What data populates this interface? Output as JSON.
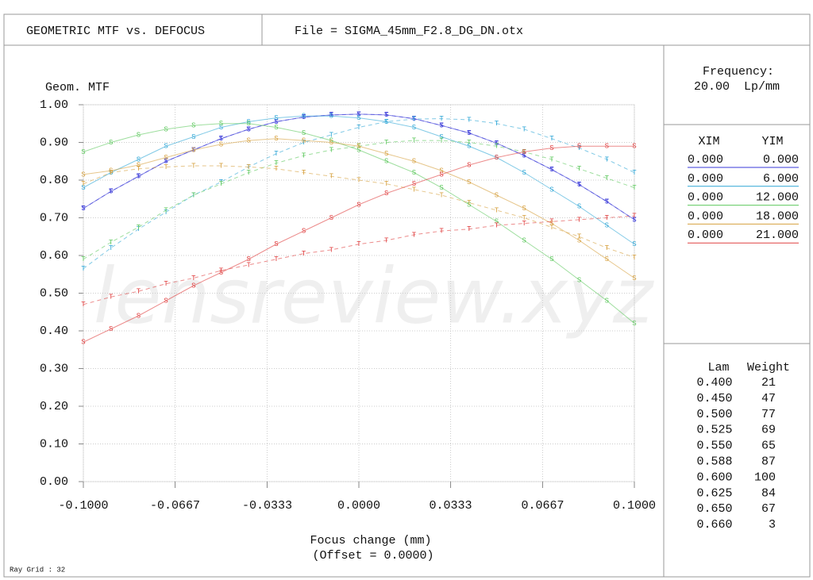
{
  "header": {
    "title": "GEOMETRIC MTF vs. DEFOCUS",
    "file": "File = SIGMA_45mm_F2.8_DG_DN.otx"
  },
  "chart_data": {
    "type": "line",
    "y_label": "Geom. MTF",
    "x_label": "Focus change (mm)",
    "x_sublabel": "(Offset = 0.0000)",
    "watermark": "lensreview.xyz",
    "x": [
      -0.1,
      -0.09,
      -0.08,
      -0.07,
      -0.06,
      -0.05,
      -0.04,
      -0.03,
      -0.02,
      -0.01,
      0,
      0.01,
      0.02,
      0.03,
      0.04,
      0.05,
      0.06,
      0.07,
      0.08,
      0.09,
      0.1
    ],
    "xlim": [
      -0.1,
      0.1
    ],
    "ylim": [
      0,
      1
    ],
    "grid": true,
    "xticks": [
      {
        "value": -0.1,
        "label": "-0.1000"
      },
      {
        "value": -0.0667,
        "label": "-0.0667"
      },
      {
        "value": -0.0333,
        "label": "-0.0333"
      },
      {
        "value": 0,
        "label": "0.0000"
      },
      {
        "value": 0.0333,
        "label": "0.0333"
      },
      {
        "value": 0.0667,
        "label": "0.0667"
      },
      {
        "value": 0.1,
        "label": "0.1000"
      }
    ],
    "yticks": [
      {
        "value": 0,
        "label": "0.00"
      },
      {
        "value": 0.1,
        "label": "0.10"
      },
      {
        "value": 0.2,
        "label": "0.20"
      },
      {
        "value": 0.3,
        "label": "0.30"
      },
      {
        "value": 0.4,
        "label": "0.40"
      },
      {
        "value": 0.5,
        "label": "0.50"
      },
      {
        "value": 0.6,
        "label": "0.60"
      },
      {
        "value": 0.7,
        "label": "0.70"
      },
      {
        "value": 0.8,
        "label": "0.80"
      },
      {
        "value": 0.9,
        "label": "0.90"
      },
      {
        "value": 1,
        "label": "1.00"
      }
    ],
    "series": [
      {
        "marker": "S",
        "color": "#3a3ad8",
        "values": [
          0.725,
          0.77,
          0.81,
          0.85,
          0.88,
          0.91,
          0.935,
          0.955,
          0.967,
          0.973,
          0.975,
          0.973,
          0.963,
          0.945,
          0.925,
          0.898,
          0.865,
          0.828,
          0.788,
          0.743,
          0.695
        ]
      },
      {
        "marker": "T",
        "color": "#3a3ad8",
        "values": [
          0.725,
          0.77,
          0.81,
          0.85,
          0.88,
          0.91,
          0.935,
          0.955,
          0.967,
          0.973,
          0.975,
          0.973,
          0.963,
          0.945,
          0.925,
          0.898,
          0.865,
          0.828,
          0.788,
          0.743,
          0.695
        ]
      },
      {
        "marker": "S",
        "color": "#2fa6d6",
        "values": [
          0.78,
          0.82,
          0.855,
          0.89,
          0.915,
          0.94,
          0.955,
          0.965,
          0.97,
          0.97,
          0.965,
          0.955,
          0.94,
          0.915,
          0.89,
          0.86,
          0.82,
          0.775,
          0.73,
          0.68,
          0.63
        ]
      },
      {
        "marker": "T",
        "color": "#2fa6d6",
        "values": [
          0.565,
          0.62,
          0.67,
          0.715,
          0.76,
          0.795,
          0.835,
          0.87,
          0.9,
          0.92,
          0.94,
          0.955,
          0.962,
          0.963,
          0.96,
          0.95,
          0.935,
          0.91,
          0.885,
          0.855,
          0.82
        ]
      },
      {
        "marker": "S",
        "color": "#5ec85e",
        "values": [
          0.875,
          0.9,
          0.92,
          0.935,
          0.945,
          0.95,
          0.95,
          0.94,
          0.925,
          0.905,
          0.88,
          0.85,
          0.82,
          0.78,
          0.735,
          0.69,
          0.64,
          0.59,
          0.535,
          0.48,
          0.42
        ]
      },
      {
        "marker": "T",
        "color": "#5ec85e",
        "values": [
          0.59,
          0.635,
          0.675,
          0.72,
          0.76,
          0.79,
          0.82,
          0.845,
          0.865,
          0.88,
          0.89,
          0.9,
          0.905,
          0.905,
          0.9,
          0.89,
          0.875,
          0.855,
          0.83,
          0.805,
          0.78
        ]
      },
      {
        "marker": "S",
        "color": "#d6a03e",
        "values": [
          0.815,
          0.825,
          0.84,
          0.86,
          0.88,
          0.895,
          0.905,
          0.91,
          0.905,
          0.9,
          0.89,
          0.87,
          0.85,
          0.825,
          0.795,
          0.76,
          0.725,
          0.685,
          0.64,
          0.59,
          0.54
        ]
      },
      {
        "marker": "T",
        "color": "#d6a03e",
        "values": [
          0.79,
          0.82,
          0.83,
          0.835,
          0.838,
          0.838,
          0.835,
          0.83,
          0.82,
          0.81,
          0.8,
          0.79,
          0.775,
          0.76,
          0.74,
          0.72,
          0.7,
          0.675,
          0.65,
          0.62,
          0.595
        ]
      },
      {
        "marker": "S",
        "color": "#e04040",
        "values": [
          0.37,
          0.405,
          0.44,
          0.48,
          0.52,
          0.555,
          0.59,
          0.63,
          0.665,
          0.7,
          0.735,
          0.765,
          0.79,
          0.815,
          0.84,
          0.86,
          0.875,
          0.885,
          0.89,
          0.89,
          0.89
        ]
      },
      {
        "marker": "T",
        "color": "#e04040",
        "values": [
          0.47,
          0.49,
          0.505,
          0.525,
          0.54,
          0.56,
          0.575,
          0.59,
          0.605,
          0.615,
          0.63,
          0.64,
          0.655,
          0.665,
          0.67,
          0.68,
          0.685,
          0.69,
          0.695,
          0.7,
          0.705
        ]
      }
    ]
  },
  "frequency": {
    "label": "Frequency:",
    "value": "20.00  Lp/mm"
  },
  "fields": {
    "headers": [
      "XIM",
      "YIM"
    ],
    "rows": [
      {
        "xim": "0.000",
        "yim": "0.000",
        "color": "#3a3ad8"
      },
      {
        "xim": "0.000",
        "yim": "6.000",
        "color": "#2fa6d6"
      },
      {
        "xim": "0.000",
        "yim": "12.000",
        "color": "#5ec85e"
      },
      {
        "xim": "0.000",
        "yim": "18.000",
        "color": "#d6a03e"
      },
      {
        "xim": "0.000",
        "yim": "21.000",
        "color": "#e04040"
      }
    ]
  },
  "wavelengths": {
    "headers": [
      "Lam",
      "Weight"
    ],
    "rows": [
      [
        "0.400",
        "21"
      ],
      [
        "0.450",
        "47"
      ],
      [
        "0.500",
        "77"
      ],
      [
        "0.525",
        "69"
      ],
      [
        "0.550",
        "65"
      ],
      [
        "0.588",
        "87"
      ],
      [
        "0.600",
        "100"
      ],
      [
        "0.625",
        "84"
      ],
      [
        "0.650",
        "67"
      ],
      [
        "0.660",
        "3"
      ]
    ]
  },
  "footer": "Ray Grid : 32"
}
